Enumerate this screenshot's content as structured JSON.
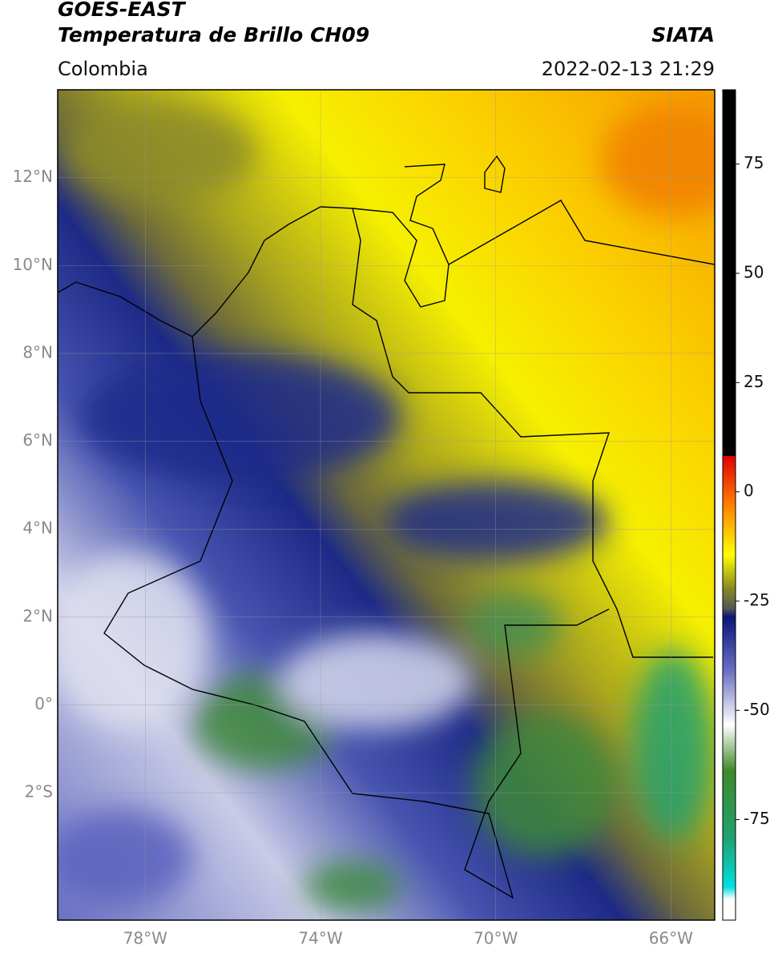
{
  "header": {
    "title": "GOES-EAST",
    "subtitle": "Temperatura de Brillo CH09",
    "source": "SIATA",
    "region": "Colombia",
    "timestamp": "2022-02-13 21:29"
  },
  "map": {
    "lonlim": [
      -80,
      -65
    ],
    "latlim": [
      -4.9,
      14
    ],
    "lat_ticks": [
      {
        "value": 12,
        "label": "12°N"
      },
      {
        "value": 10,
        "label": "10°N"
      },
      {
        "value": 8,
        "label": "8°N"
      },
      {
        "value": 6,
        "label": "6°N"
      },
      {
        "value": 4,
        "label": "4°N"
      },
      {
        "value": 2,
        "label": "2°N"
      },
      {
        "value": 0,
        "label": "0°"
      },
      {
        "value": -2,
        "label": "2°S"
      }
    ],
    "lon_ticks": [
      {
        "value": -78,
        "label": "78°W"
      },
      {
        "value": -74,
        "label": "74°W"
      },
      {
        "value": -70,
        "label": "70°W"
      },
      {
        "value": -66,
        "label": "66°W"
      }
    ]
  },
  "colorbar": {
    "lim": [
      -98,
      92
    ],
    "ticks": [
      75,
      50,
      25,
      0,
      -25,
      -50,
      -75
    ]
  }
}
